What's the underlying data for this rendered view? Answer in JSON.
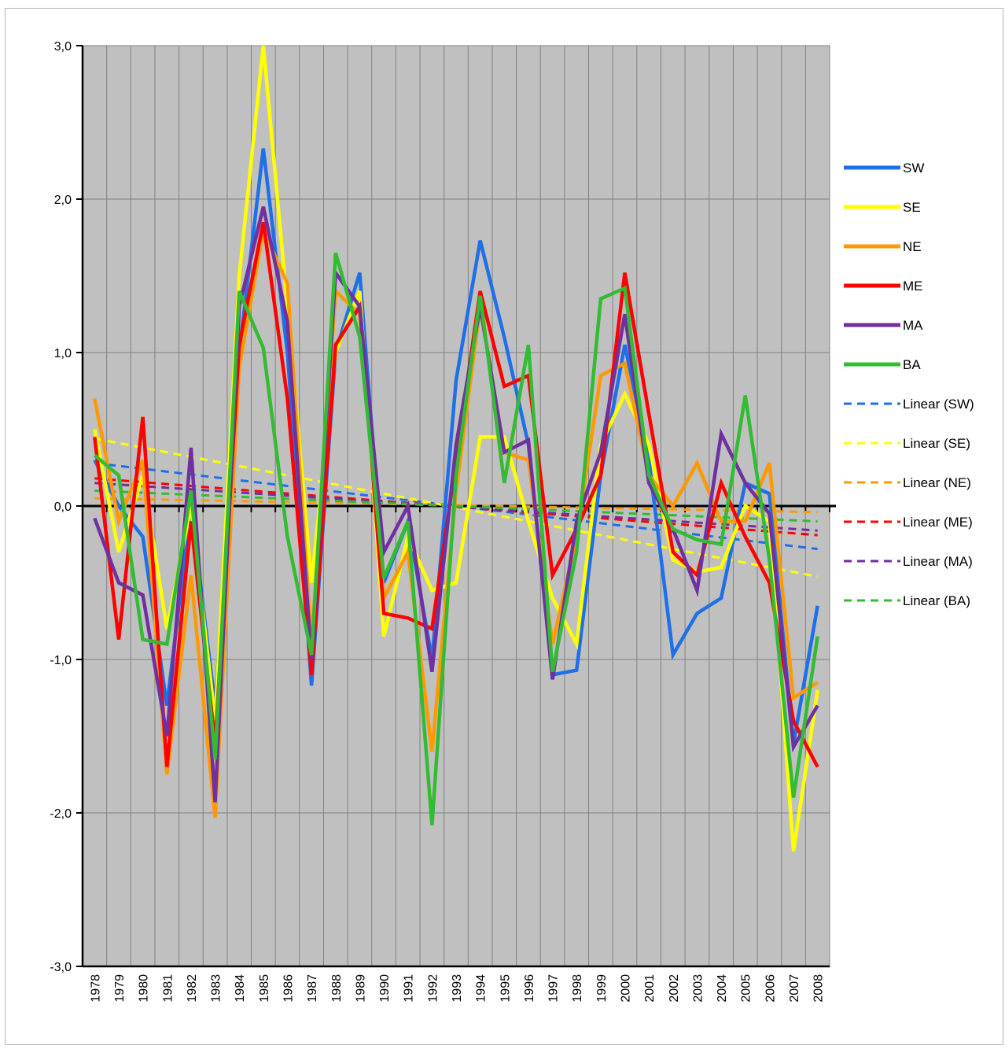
{
  "chart_data": {
    "type": "line",
    "title": "",
    "xlabel": "",
    "ylabel": "",
    "ylim": [
      -3,
      3
    ],
    "y_ticks": [
      "3,0",
      "2,0",
      "1,0",
      "0,0",
      "-1,0",
      "-2,0",
      "-3,0"
    ],
    "y_tick_values": [
      3,
      2,
      1,
      0,
      -1,
      -2,
      -3
    ],
    "grid": "on",
    "plot_background": "#c0c0c0",
    "legend_position": "right",
    "categories": [
      "1978",
      "1979",
      "1980",
      "1981",
      "1982",
      "1983",
      "1984",
      "1985",
      "1986",
      "1987",
      "1988",
      "1989",
      "1990",
      "1991",
      "1992",
      "1993",
      "1994",
      "1995",
      "1996",
      "1997",
      "1998",
      "1999",
      "2000",
      "2001",
      "2002",
      "2003",
      "2004",
      "2005",
      "2006",
      "2007",
      "2008"
    ],
    "series": [
      {
        "name": "SW",
        "color": "#1f6fe8",
        "values": [
          0.3,
          0.0,
          -0.2,
          -1.3,
          0.0,
          -1.3,
          1.0,
          2.33,
          1.0,
          -1.17,
          1.0,
          1.52,
          -0.5,
          -0.1,
          -1.0,
          0.82,
          1.73,
          1.1,
          0.4,
          -1.1,
          -1.07,
          0.2,
          1.05,
          0.3,
          -0.97,
          -0.7,
          -0.6,
          0.15,
          0.08,
          -1.55,
          -0.65
        ]
      },
      {
        "name": "SE",
        "color": "#ffff00",
        "values": [
          0.5,
          -0.3,
          0.2,
          -0.8,
          0.0,
          -1.4,
          1.5,
          3.0,
          1.3,
          -0.5,
          1.0,
          1.4,
          -0.85,
          -0.2,
          -0.55,
          -0.5,
          0.45,
          0.45,
          -0.1,
          -0.6,
          -0.9,
          0.4,
          0.73,
          0.4,
          -0.35,
          -0.43,
          -0.4,
          0.0,
          -0.1,
          -2.25,
          -1.2
        ]
      },
      {
        "name": "NE",
        "color": "#ff9900",
        "values": [
          0.7,
          -0.1,
          0.3,
          -1.75,
          -0.45,
          -2.03,
          0.9,
          1.8,
          1.45,
          -0.9,
          1.4,
          1.25,
          -0.6,
          -0.3,
          -1.6,
          0.1,
          1.3,
          0.35,
          0.3,
          -0.9,
          -0.2,
          0.85,
          0.93,
          0.2,
          0.0,
          0.28,
          -0.1,
          -0.1,
          0.28,
          -1.25,
          -1.15
        ]
      },
      {
        "name": "ME",
        "color": "#ff0000",
        "values": [
          0.45,
          -0.87,
          0.58,
          -1.7,
          -0.1,
          -1.55,
          1.05,
          1.85,
          0.7,
          -1.1,
          1.05,
          1.3,
          -0.7,
          -0.73,
          -0.8,
          0.3,
          1.4,
          0.78,
          0.85,
          -0.45,
          -0.15,
          0.2,
          1.52,
          0.6,
          -0.3,
          -0.45,
          0.15,
          -0.2,
          -0.5,
          -1.4,
          -1.7
        ]
      },
      {
        "name": "MA",
        "color": "#7030a0",
        "values": [
          -0.08,
          -0.5,
          -0.58,
          -1.5,
          0.38,
          -1.93,
          1.3,
          1.95,
          1.2,
          -1.0,
          1.52,
          1.3,
          -0.3,
          0.0,
          -1.08,
          0.4,
          1.3,
          0.35,
          0.43,
          -1.13,
          -0.1,
          0.35,
          1.25,
          0.15,
          -0.15,
          -0.55,
          0.47,
          0.15,
          -0.05,
          -1.57,
          -1.3
        ]
      },
      {
        "name": "BA",
        "color": "#33bb33",
        "values": [
          0.33,
          0.2,
          -0.87,
          -0.9,
          0.1,
          -1.65,
          1.4,
          1.03,
          -0.2,
          -0.97,
          1.65,
          1.1,
          -0.47,
          -0.1,
          -2.08,
          0.2,
          1.37,
          0.15,
          1.05,
          -1.08,
          -0.3,
          1.35,
          1.42,
          0.2,
          -0.15,
          -0.22,
          -0.25,
          0.72,
          -0.35,
          -1.9,
          -0.85
        ]
      }
    ],
    "trendlines": [
      {
        "name": "Linear (SW)",
        "color": "#1f6fe8",
        "start": 0.28,
        "end": -0.28
      },
      {
        "name": "Linear (SE)",
        "color": "#ffff00",
        "start": 0.44,
        "end": -0.46
      },
      {
        "name": "Linear (NE)",
        "color": "#ff9900",
        "start": 0.05,
        "end": -0.04
      },
      {
        "name": "Linear (ME)",
        "color": "#ff0000",
        "start": 0.18,
        "end": -0.19
      },
      {
        "name": "Linear (MA)",
        "color": "#7030a0",
        "start": 0.15,
        "end": -0.16
      },
      {
        "name": "Linear (BA)",
        "color": "#33bb33",
        "start": 0.1,
        "end": -0.1
      }
    ]
  }
}
